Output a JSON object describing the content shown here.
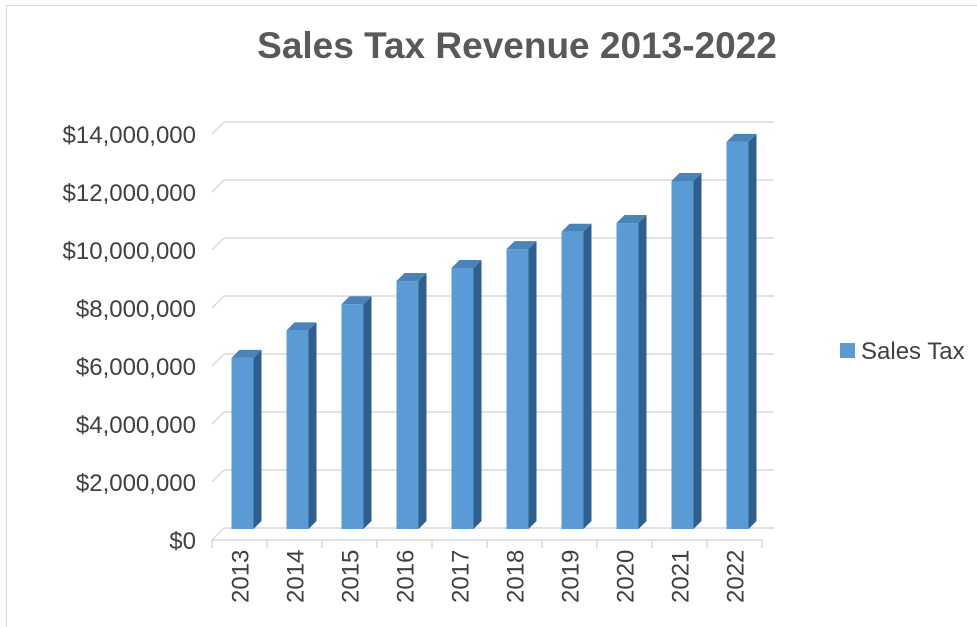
{
  "chart_data": {
    "type": "bar",
    "title": "Sales Tax Revenue 2013-2022",
    "xlabel": "",
    "ylabel": "",
    "categories": [
      "2013",
      "2014",
      "2015",
      "2016",
      "2017",
      "2018",
      "2019",
      "2020",
      "2021",
      "2022"
    ],
    "series": [
      {
        "name": "Sales Tax",
        "values": [
          5900000,
          6850000,
          7750000,
          8550000,
          9000000,
          9650000,
          10250000,
          10550000,
          12000000,
          13350000
        ]
      }
    ],
    "ylim": [
      0,
      14000000
    ],
    "y_ticks": [
      "$0",
      "$2,000,000",
      "$4,000,000",
      "$6,000,000",
      "$8,000,000",
      "$10,000,000",
      "$12,000,000",
      "$14,000,000"
    ],
    "grid": true,
    "legend": "right",
    "bar_style": "3d-column",
    "colors": {
      "bar_front": "#5b9bd5",
      "bar_side": "#2e5f8f",
      "bar_top": "#4a83b8",
      "grid": "#d9d9d9",
      "text": "#404040",
      "title": "#595959"
    }
  }
}
